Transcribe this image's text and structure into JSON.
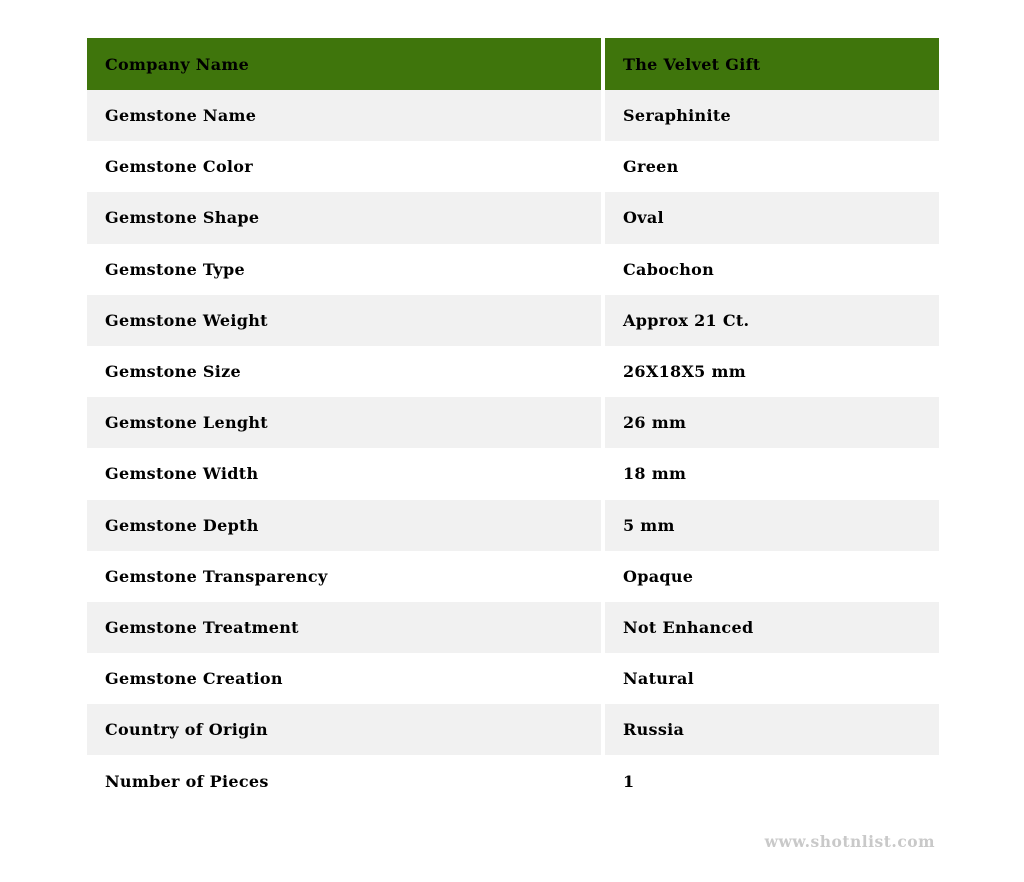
{
  "table": {
    "header": {
      "label": "Company Name",
      "value": "The Velvet Gift"
    },
    "rows": [
      {
        "label": "Gemstone Name",
        "value": "Seraphinite"
      },
      {
        "label": "Gemstone Color",
        "value": "Green"
      },
      {
        "label": "Gemstone Shape",
        "value": "Oval"
      },
      {
        "label": "Gemstone Type",
        "value": "Cabochon"
      },
      {
        "label": "Gemstone Weight",
        "value": "Approx 21 Ct."
      },
      {
        "label": "Gemstone Size",
        "value": "26X18X5 mm"
      },
      {
        "label": "Gemstone Lenght",
        "value": "26 mm"
      },
      {
        "label": "Gemstone Width",
        "value": "18 mm"
      },
      {
        "label": "Gemstone Depth",
        "value": "5 mm"
      },
      {
        "label": "Gemstone Transparency",
        "value": "Opaque"
      },
      {
        "label": "Gemstone Treatment",
        "value": "Not Enhanced"
      },
      {
        "label": "Gemstone Creation",
        "value": "Natural"
      },
      {
        "label": "Country of Origin",
        "value": "Russia"
      },
      {
        "label": "Number of Pieces",
        "value": "1"
      }
    ]
  },
  "watermark": {
    "text": "www.shotnlist.com"
  },
  "colors": {
    "header_bg": "#3F750C",
    "row_bg": "#FFFFFF",
    "row_alt_bg": "#F1F1F1",
    "text": "#000000",
    "watermark": "#C9C9C9"
  }
}
